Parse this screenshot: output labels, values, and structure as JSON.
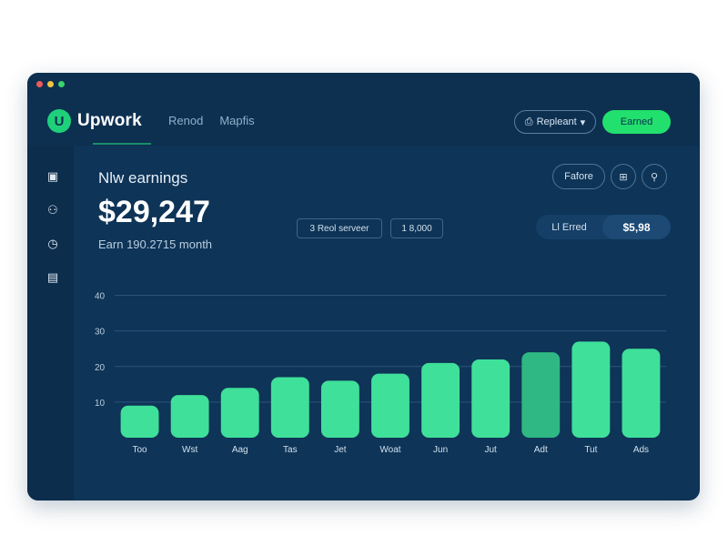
{
  "window": {
    "dot_colors": [
      "#f05a5a",
      "#f5c342",
      "#39d46b"
    ]
  },
  "header": {
    "brand": "Upwork",
    "logo_letter": "U",
    "nav": [
      "Renod",
      "Mapfis"
    ],
    "report_label": "Repleant",
    "earned_label": "Earned"
  },
  "sidebar": {
    "icons": [
      "briefcase-icon",
      "user-lock-icon",
      "clock-icon",
      "calendar-icon"
    ]
  },
  "main": {
    "title": "Nlw earnings",
    "amount": "$29,247",
    "subtitle": "Earn 190.2715 month",
    "pill_a": "3 Reol serveer",
    "pill_b": "1 8,000",
    "filter_label": "Fafore",
    "summary_label": "Ll Erred",
    "summary_value": "$5,98"
  },
  "chart_data": {
    "type": "bar",
    "categories": [
      "Too",
      "Wst",
      "Aag",
      "Tas",
      "Jet",
      "Woat",
      "Jun",
      "Jut",
      "Adt",
      "Tut",
      "Ads"
    ],
    "values": [
      9,
      12,
      14,
      17,
      16,
      18,
      21,
      22,
      24,
      27,
      25
    ],
    "highlight_index": 8,
    "y_ticks": [
      "10",
      "20",
      "30",
      "40"
    ],
    "ylim": [
      0,
      45
    ],
    "grid": true,
    "bar_color": "#3fe09a",
    "highlight_color": "#2fb883"
  }
}
